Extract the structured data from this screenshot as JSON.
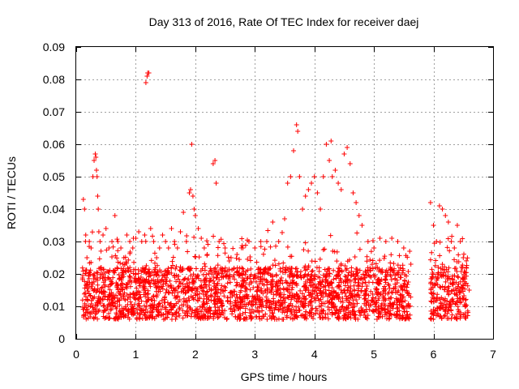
{
  "chart_data": {
    "type": "scatter",
    "title": "Day 313 of 2016, Rate Of TEC Index for receiver daej",
    "xlabel": "GPS time / hours",
    "ylabel": "ROTI / TECUs",
    "xlim": [
      0,
      7
    ],
    "ylim": [
      0,
      0.09
    ],
    "xticks": [
      0,
      1,
      2,
      3,
      4,
      5,
      6,
      7
    ],
    "xtick_labels": [
      "0",
      "1",
      "2",
      "3",
      "4",
      "5",
      "6",
      "7"
    ],
    "yticks": [
      0,
      0.01,
      0.02,
      0.03,
      0.04,
      0.05,
      0.06,
      0.07,
      0.08,
      0.09
    ],
    "ytick_labels": [
      "0",
      "0.01",
      "0.02",
      "0.03",
      "0.04",
      "0.05",
      "0.06",
      "0.07",
      "0.08",
      "0.09"
    ],
    "grid": true,
    "marker": "+",
    "color": "#ff0000",
    "series": [
      {
        "name": "ROTI",
        "x": [
          0.12,
          0.14,
          0.16,
          0.18,
          0.22,
          0.25,
          0.28,
          0.3,
          0.32,
          0.33,
          0.34,
          0.35,
          0.36,
          0.37,
          0.38,
          0.4,
          0.42,
          0.45,
          0.5,
          0.55,
          0.6,
          0.65,
          0.7,
          0.75,
          0.8,
          0.85,
          0.9,
          0.95,
          1.0,
          1.05,
          1.1,
          1.15,
          1.17,
          1.19,
          1.2,
          1.22,
          1.25,
          1.3,
          1.35,
          1.4,
          1.45,
          1.5,
          1.55,
          1.6,
          1.65,
          1.7,
          1.75,
          1.8,
          1.85,
          1.9,
          1.92,
          1.94,
          1.96,
          1.98,
          2.0,
          2.05,
          2.1,
          2.15,
          2.2,
          2.3,
          2.33,
          2.35,
          2.4,
          2.5,
          2.6,
          2.7,
          2.8,
          2.9,
          3.0,
          3.1,
          3.2,
          3.3,
          3.4,
          3.5,
          3.55,
          3.6,
          3.65,
          3.7,
          3.72,
          3.75,
          3.8,
          3.85,
          3.9,
          3.95,
          4.0,
          4.05,
          4.1,
          4.15,
          4.2,
          4.25,
          4.28,
          4.3,
          4.35,
          4.4,
          4.45,
          4.5,
          4.55,
          4.6,
          4.65,
          4.7,
          4.75,
          4.8,
          4.9,
          5.0,
          5.1,
          5.2,
          5.3,
          5.4,
          5.5,
          5.6,
          5.62,
          5.95,
          6.0,
          6.05,
          6.1,
          6.15,
          6.2,
          6.25,
          6.3,
          6.35,
          6.4,
          6.45,
          6.5,
          6.55,
          6.6
        ],
        "y": [
          0.043,
          0.04,
          0.032,
          0.025,
          0.03,
          0.028,
          0.05,
          0.055,
          0.057,
          0.056,
          0.052,
          0.05,
          0.044,
          0.04,
          0.033,
          0.03,
          0.022,
          0.032,
          0.034,
          0.028,
          0.03,
          0.038,
          0.03,
          0.028,
          0.025,
          0.032,
          0.03,
          0.028,
          0.031,
          0.033,
          0.03,
          0.032,
          0.079,
          0.081,
          0.082,
          0.082,
          0.034,
          0.03,
          0.025,
          0.028,
          0.032,
          0.03,
          0.028,
          0.034,
          0.03,
          0.028,
          0.033,
          0.039,
          0.03,
          0.045,
          0.046,
          0.06,
          0.044,
          0.04,
          0.038,
          0.034,
          0.031,
          0.028,
          0.026,
          0.054,
          0.055,
          0.048,
          0.03,
          0.028,
          0.025,
          0.026,
          0.028,
          0.03,
          0.028,
          0.03,
          0.03,
          0.036,
          0.03,
          0.037,
          0.048,
          0.05,
          0.058,
          0.066,
          0.064,
          0.05,
          0.04,
          0.044,
          0.046,
          0.048,
          0.05,
          0.045,
          0.04,
          0.05,
          0.06,
          0.055,
          0.061,
          0.05,
          0.052,
          0.048,
          0.046,
          0.057,
          0.059,
          0.054,
          0.045,
          0.042,
          0.038,
          0.035,
          0.03,
          0.028,
          0.031,
          0.03,
          0.031,
          0.03,
          0.028,
          0.027,
          0.023,
          0.042,
          0.035,
          0.03,
          0.041,
          0.04,
          0.038,
          0.036,
          0.03,
          0.028,
          0.035,
          0.03,
          0.025,
          0.022,
          0.015
        ]
      }
    ],
    "dense_band": {
      "segments": [
        [
          0.1,
          2.28
        ],
        [
          2.3,
          5.62
        ],
        [
          5.95,
          6.58
        ]
      ],
      "typical_range": [
        0.006,
        0.022
      ]
    }
  }
}
